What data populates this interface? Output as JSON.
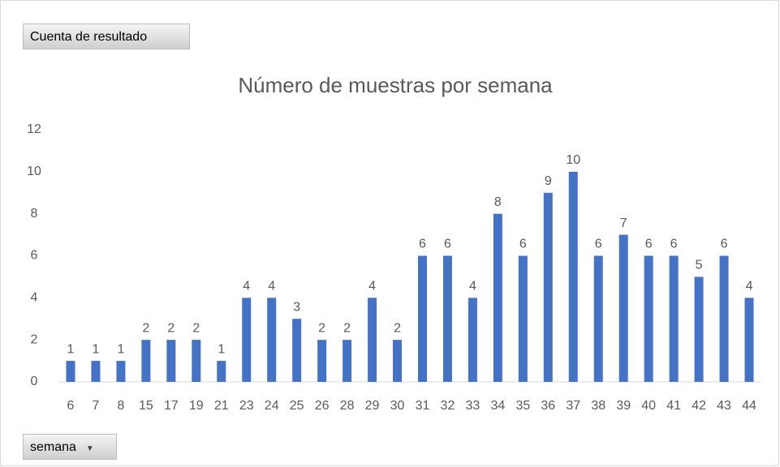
{
  "chart_data": {
    "type": "bar",
    "title": "Número de muestras por semana",
    "value_field_button": "Cuenta de resultado",
    "axis_field_button": "semana",
    "categories": [
      "6",
      "7",
      "8",
      "15",
      "17",
      "19",
      "21",
      "23",
      "24",
      "25",
      "26",
      "28",
      "29",
      "30",
      "31",
      "32",
      "33",
      "34",
      "35",
      "36",
      "37",
      "38",
      "39",
      "40",
      "41",
      "42",
      "43",
      "44"
    ],
    "values": [
      1,
      1,
      1,
      2,
      2,
      2,
      1,
      4,
      4,
      3,
      2,
      2,
      4,
      2,
      6,
      6,
      4,
      8,
      6,
      9,
      10,
      6,
      7,
      6,
      6,
      5,
      6,
      4
    ],
    "color": "#4472c4",
    "ylim": [
      0,
      12
    ],
    "yticks": [
      0,
      2,
      4,
      6,
      8,
      10,
      12
    ],
    "grid": false,
    "data_labels": true
  }
}
